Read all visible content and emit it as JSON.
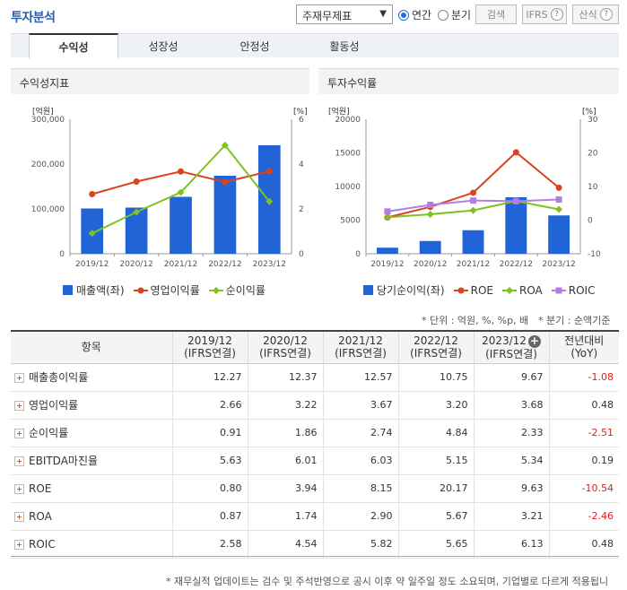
{
  "header": {
    "title": "투자분석",
    "select_value": "주재무제표",
    "radio_annual": "연간",
    "radio_quarter": "분기",
    "search_label": "검색",
    "ifrs_label": "IFRS",
    "formula_label": "산식",
    "help_mark": "?"
  },
  "tabs": [
    {
      "label": "수익성"
    },
    {
      "label": "성장성"
    },
    {
      "label": "안정성"
    },
    {
      "label": "활동성"
    }
  ],
  "charts": {
    "left_title": "수익성지표",
    "right_title": "투자수익률",
    "left_unit_left": "[억원]",
    "left_unit_right": "[%]",
    "right_unit_left": "[억원]",
    "right_unit_right": "[%]",
    "left_legend": [
      "매출액(좌)",
      "영업이익률",
      "순이익률"
    ],
    "right_legend": [
      "당기순이익(좌)",
      "ROE",
      "ROA",
      "ROIC"
    ]
  },
  "chart_data": [
    {
      "type": "bar",
      "title": "수익성지표",
      "categories": [
        "2019/12",
        "2020/12",
        "2021/12",
        "2022/12",
        "2023/12"
      ],
      "y_left_ticks": [
        "300,000",
        "200,000",
        "100,000",
        "0"
      ],
      "y_right_ticks": [
        "6",
        "4",
        "2",
        "0"
      ],
      "ylim_left": [
        0,
        300000
      ],
      "ylim_right": [
        0,
        6
      ],
      "series": [
        {
          "name": "매출액(좌)",
          "type": "bar",
          "axis": "left",
          "color": "#2264d6",
          "values": [
            101000,
            103000,
            127000,
            174000,
            242000
          ]
        },
        {
          "name": "영업이익률",
          "type": "line",
          "axis": "right",
          "color": "#d9431e",
          "values": [
            2.66,
            3.22,
            3.67,
            3.2,
            3.68
          ]
        },
        {
          "name": "순이익률",
          "type": "line",
          "axis": "right",
          "color": "#7dc21e",
          "values": [
            0.91,
            1.86,
            2.74,
            4.84,
            2.33
          ]
        }
      ]
    },
    {
      "type": "bar",
      "title": "투자수익률",
      "categories": [
        "2019/12",
        "2020/12",
        "2021/12",
        "2022/12",
        "2023/12"
      ],
      "y_left_ticks": [
        "20000",
        "15000",
        "10000",
        "5000",
        "0"
      ],
      "y_right_ticks": [
        "30",
        "20",
        "10",
        "0",
        "-10"
      ],
      "ylim_left": [
        0,
        20000
      ],
      "ylim_right": [
        -10,
        30
      ],
      "series": [
        {
          "name": "당기순이익(좌)",
          "type": "bar",
          "axis": "left",
          "color": "#2264d6",
          "values": [
            900,
            1900,
            3500,
            8400,
            5700
          ]
        },
        {
          "name": "ROE",
          "type": "line",
          "axis": "right",
          "color": "#d9431e",
          "values": [
            0.8,
            3.94,
            8.15,
            20.17,
            9.63
          ]
        },
        {
          "name": "ROA",
          "type": "line",
          "axis": "right",
          "color": "#7dc21e",
          "values": [
            0.87,
            1.74,
            2.9,
            5.67,
            3.21
          ]
        },
        {
          "name": "ROIC",
          "type": "line",
          "axis": "right",
          "color": "#b07fe0",
          "values": [
            2.58,
            4.54,
            5.82,
            5.65,
            6.13
          ]
        }
      ]
    }
  ],
  "notes": {
    "unit": "* 단위 : 억원, %, %p, 배",
    "quarter": "* 분기 : 순액기준",
    "footer": "* 재무실적 업데이트는 검수 및 주석반영으로 공시 이후 약 일주일 정도 소요되며, 기업별로 다르게 적용됩니"
  },
  "table": {
    "header_item": "항목",
    "columns": [
      {
        "year": "2019/12",
        "basis": "(IFRS연결)"
      },
      {
        "year": "2020/12",
        "basis": "(IFRS연결)"
      },
      {
        "year": "2021/12",
        "basis": "(IFRS연결)"
      },
      {
        "year": "2022/12",
        "basis": "(IFRS연결)"
      },
      {
        "year": "2023/12",
        "basis": "(IFRS연결)"
      }
    ],
    "yoy_line1": "전년대비",
    "yoy_line2": "(YoY)",
    "rows": [
      {
        "label": "매출총이익률",
        "values": [
          "12.27",
          "12.37",
          "12.57",
          "10.75",
          "9.67"
        ],
        "yoy": "-1.08",
        "neg": true
      },
      {
        "label": "영업이익률",
        "values": [
          "2.66",
          "3.22",
          "3.67",
          "3.20",
          "3.68"
        ],
        "yoy": "0.48",
        "neg": false
      },
      {
        "label": "순이익률",
        "values": [
          "0.91",
          "1.86",
          "2.74",
          "4.84",
          "2.33"
        ],
        "yoy": "-2.51",
        "neg": true
      },
      {
        "label": "EBITDA마진율",
        "values": [
          "5.63",
          "6.01",
          "6.03",
          "5.15",
          "5.34"
        ],
        "yoy": "0.19",
        "neg": false
      },
      {
        "label": "ROE",
        "values": [
          "0.80",
          "3.94",
          "8.15",
          "20.17",
          "9.63"
        ],
        "yoy": "-10.54",
        "neg": true
      },
      {
        "label": "ROA",
        "values": [
          "0.87",
          "1.74",
          "2.90",
          "5.67",
          "3.21"
        ],
        "yoy": "-2.46",
        "neg": true
      },
      {
        "label": "ROIC",
        "values": [
          "2.58",
          "4.54",
          "5.82",
          "5.65",
          "6.13"
        ],
        "yoy": "0.48",
        "neg": false
      }
    ]
  }
}
